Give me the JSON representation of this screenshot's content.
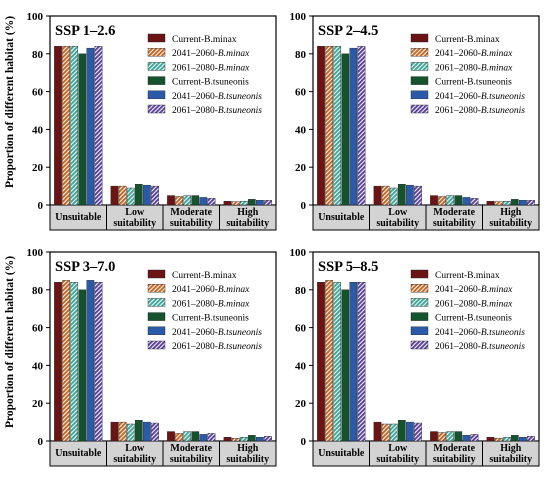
{
  "ylabel": "Proportion of different habitat (%)",
  "categories": [
    "Unsuitable",
    "Low suitability",
    "Moderate suitability",
    "High suitability"
  ],
  "category_lines": [
    [
      "Unsuitable"
    ],
    [
      "Low",
      "suitability"
    ],
    [
      "Moderate",
      "suitability"
    ],
    [
      "High",
      "suitability"
    ]
  ],
  "legend": [
    {
      "prefix": "Current-B.minax",
      "species": "",
      "color": "#6b1414",
      "pattern": "solid"
    },
    {
      "prefix": "2041–2060-",
      "species": "B.minax",
      "color": "#c8651e",
      "pattern": "hatch"
    },
    {
      "prefix": "2061–2080-",
      "species": "B.minax",
      "color": "#3aa89a",
      "pattern": "hatch"
    },
    {
      "prefix": "Current-B.tsuneonis",
      "species": "",
      "color": "#14532d",
      "pattern": "solid"
    },
    {
      "prefix": "2041–2060-",
      "species": "B.tsuneonis",
      "color": "#2b5aa8",
      "pattern": "solid"
    },
    {
      "prefix": "2061–2080-",
      "species": "B.tsuneonis",
      "color": "#5a3fa0",
      "pattern": "hatch"
    }
  ],
  "chart_data": [
    {
      "type": "bar",
      "title": "SSP 1–2.6",
      "ylim": [
        0,
        100
      ],
      "yticks": [
        0,
        20,
        40,
        60,
        80,
        100
      ],
      "categories": [
        "Unsuitable",
        "Low suitability",
        "Moderate suitability",
        "High suitability"
      ],
      "series": [
        {
          "name": "Current-B.minax",
          "values": [
            84,
            10,
            5,
            2
          ]
        },
        {
          "name": "2041–2060-B.minax",
          "values": [
            84,
            10,
            4.5,
            1.8
          ]
        },
        {
          "name": "2061–2080-B.minax",
          "values": [
            84,
            9,
            5,
            2
          ]
        },
        {
          "name": "Current-B.tsuneonis",
          "values": [
            80,
            11,
            5,
            3
          ]
        },
        {
          "name": "2041–2060-B.tsuneonis",
          "values": [
            83,
            10.5,
            4,
            2.5
          ]
        },
        {
          "name": "2061–2080-B.tsuneonis",
          "values": [
            84,
            10,
            3.5,
            2.5
          ]
        }
      ]
    },
    {
      "type": "bar",
      "title": "SSP 2–4.5",
      "ylim": [
        0,
        100
      ],
      "yticks": [
        0,
        20,
        40,
        60,
        80,
        100
      ],
      "categories": [
        "Unsuitable",
        "Low suitability",
        "Moderate suitability",
        "High suitability"
      ],
      "series": [
        {
          "name": "Current-B.minax",
          "values": [
            84,
            10,
            5,
            2
          ]
        },
        {
          "name": "2041–2060-B.minax",
          "values": [
            84,
            10,
            4.5,
            1.8
          ]
        },
        {
          "name": "2061–2080-B.minax",
          "values": [
            84,
            9,
            5,
            2
          ]
        },
        {
          "name": "Current-B.tsuneonis",
          "values": [
            80,
            11,
            5,
            3
          ]
        },
        {
          "name": "2041–2060-B.tsuneonis",
          "values": [
            83,
            10.5,
            4,
            2.5
          ]
        },
        {
          "name": "2061–2080-B.tsuneonis",
          "values": [
            84,
            10,
            3.5,
            2.5
          ]
        }
      ]
    },
    {
      "type": "bar",
      "title": "SSP 3–7.0",
      "ylim": [
        0,
        100
      ],
      "yticks": [
        0,
        20,
        40,
        60,
        80,
        100
      ],
      "categories": [
        "Unsuitable",
        "Low suitability",
        "Moderate suitability",
        "High suitability"
      ],
      "series": [
        {
          "name": "Current-B.minax",
          "values": [
            84,
            10,
            5,
            2
          ]
        },
        {
          "name": "2041–2060-B.minax",
          "values": [
            85,
            10,
            4,
            1.5
          ]
        },
        {
          "name": "2061–2080-B.minax",
          "values": [
            84,
            9,
            5,
            2
          ]
        },
        {
          "name": "Current-B.tsuneonis",
          "values": [
            80,
            11,
            5,
            3
          ]
        },
        {
          "name": "2041–2060-B.tsuneonis",
          "values": [
            85,
            10,
            3.5,
            2
          ]
        },
        {
          "name": "2061–2080-B.tsuneonis",
          "values": [
            84,
            9.5,
            4,
            2.5
          ]
        }
      ]
    },
    {
      "type": "bar",
      "title": "SSP 5–8.5",
      "ylim": [
        0,
        100
      ],
      "yticks": [
        0,
        20,
        40,
        60,
        80,
        100
      ],
      "categories": [
        "Unsuitable",
        "Low suitability",
        "Moderate suitability",
        "High suitability"
      ],
      "series": [
        {
          "name": "Current-B.minax",
          "values": [
            84,
            10,
            5,
            2
          ]
        },
        {
          "name": "2041–2060-B.minax",
          "values": [
            85,
            9,
            4.5,
            1.5
          ]
        },
        {
          "name": "2061–2080-B.minax",
          "values": [
            84,
            9,
            5,
            2
          ]
        },
        {
          "name": "Current-B.tsuneonis",
          "values": [
            80,
            11,
            5,
            3
          ]
        },
        {
          "name": "2041–2060-B.tsuneonis",
          "values": [
            84,
            10,
            3,
            2
          ]
        },
        {
          "name": "2061–2080-B.tsuneonis",
          "values": [
            84,
            9.5,
            3.5,
            2.5
          ]
        }
      ]
    }
  ]
}
